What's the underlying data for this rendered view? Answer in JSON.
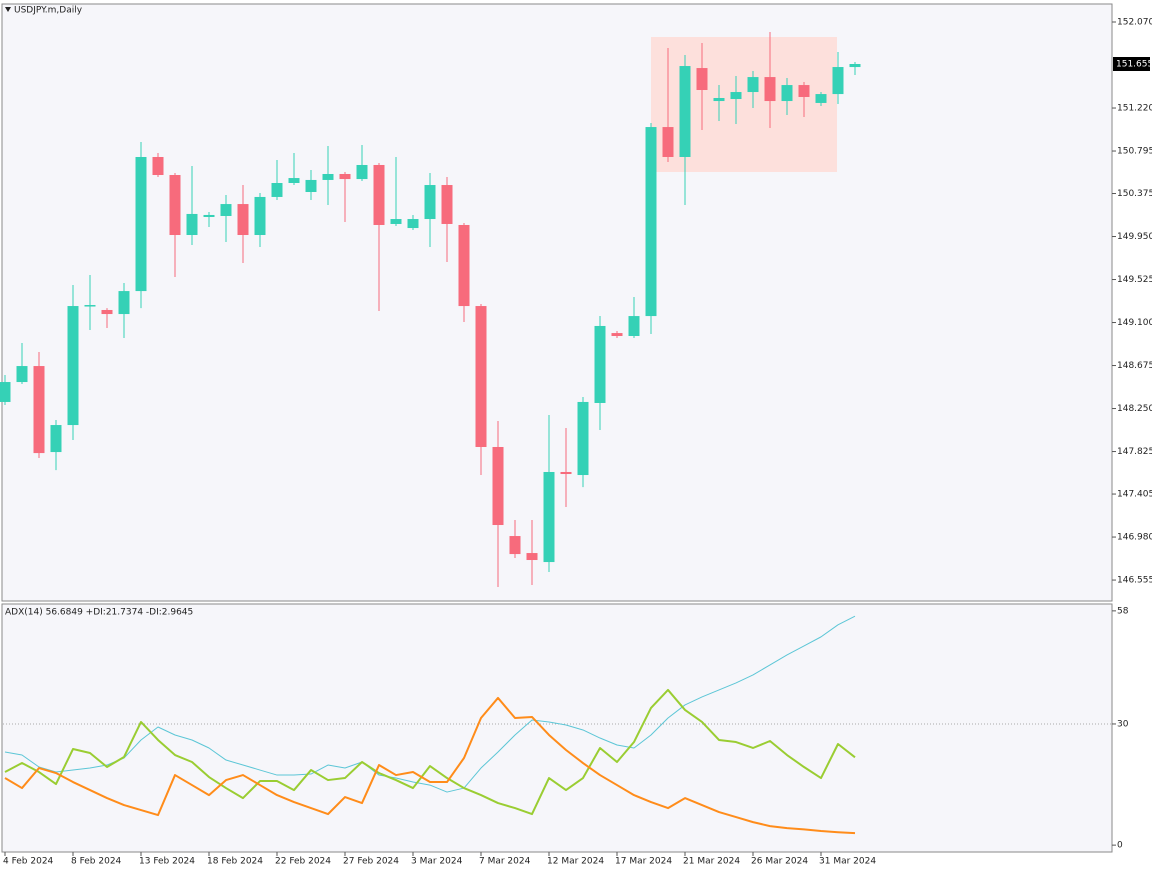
{
  "chart_data": [
    {
      "type": "candlestick",
      "title": "USDJPY.m,Daily",
      "categories": [
        "4 Feb 2024",
        null,
        null,
        null,
        "8 Feb 2024",
        null,
        null,
        null,
        "13 Feb 2024",
        null,
        null,
        null,
        "18 Feb 2024",
        null,
        null,
        null,
        "22 Feb 2024",
        null,
        null,
        null,
        "27 Feb 2024",
        null,
        null,
        null,
        "3 Mar 2024",
        null,
        null,
        null,
        "7 Mar 2024",
        null,
        null,
        null,
        "12 Mar 2024",
        null,
        null,
        null,
        "17 Mar 2024",
        null,
        null,
        null,
        "21 Mar 2024",
        null,
        null,
        null,
        "26 Mar 2024",
        null,
        null,
        null,
        "31 Mar 2024",
        null,
        null
      ],
      "open": [
        148.315,
        148.512,
        148.67,
        147.82,
        148.087,
        149.263,
        149.224,
        149.184,
        149.411,
        150.736,
        150.558,
        149.965,
        150.143,
        150.153,
        150.271,
        149.965,
        150.341,
        150.479,
        150.39,
        150.509,
        150.568,
        150.518,
        150.657,
        150.074,
        150.034,
        150.123,
        150.459,
        150.064,
        149.263,
        147.87,
        146.99,
        146.822,
        146.733,
        147.623,
        147.593,
        148.305,
        148.996,
        148.967,
        149.164,
        151.032,
        150.736,
        151.615,
        151.289,
        151.309,
        151.378,
        151.526,
        151.289,
        151.447,
        151.27,
        151.358,
        151.625
      ],
      "high": [
        148.581,
        148.898,
        148.809,
        148.137,
        149.471,
        149.57,
        149.243,
        149.491,
        150.884,
        150.775,
        150.578,
        150.647,
        150.192,
        150.36,
        150.459,
        150.38,
        150.706,
        150.775,
        150.607,
        150.845,
        150.588,
        150.854,
        150.677,
        150.736,
        150.163,
        150.578,
        150.538,
        150.084,
        149.283,
        148.127,
        147.148,
        147.148,
        148.186,
        148.058,
        148.364,
        149.164,
        149.016,
        149.352,
        151.072,
        151.813,
        151.744,
        151.862,
        151.447,
        151.536,
        151.586,
        151.971,
        151.517,
        151.477,
        151.378,
        151.774,
        151.675
      ],
      "low": [
        148.285,
        148.492,
        147.761,
        147.642,
        147.939,
        149.026,
        149.046,
        148.947,
        149.243,
        150.538,
        149.55,
        149.866,
        150.044,
        149.896,
        149.688,
        149.846,
        150.311,
        150.459,
        150.311,
        150.261,
        150.093,
        150.499,
        149.214,
        150.054,
        150.014,
        149.846,
        149.698,
        149.105,
        147.593,
        146.486,
        146.773,
        146.506,
        146.634,
        147.277,
        147.474,
        148.038,
        148.947,
        148.947,
        148.987,
        150.686,
        150.261,
        151.003,
        151.092,
        151.062,
        151.22,
        151.022,
        151.151,
        151.131,
        151.24,
        151.26,
        151.546
      ],
      "close": [
        148.512,
        148.67,
        147.81,
        148.087,
        149.263,
        149.273,
        149.184,
        149.411,
        150.736,
        150.558,
        149.965,
        150.173,
        150.163,
        150.271,
        149.965,
        150.341,
        150.479,
        150.528,
        150.509,
        150.568,
        150.518,
        150.657,
        150.064,
        150.123,
        150.123,
        150.459,
        150.074,
        149.263,
        147.87,
        147.099,
        146.812,
        146.753,
        147.623,
        147.603,
        148.315,
        149.066,
        148.967,
        149.164,
        151.032,
        150.736,
        151.635,
        151.398,
        151.319,
        151.378,
        151.526,
        151.289,
        151.447,
        151.329,
        151.358,
        151.625,
        151.655
      ],
      "up_color": "#35d1b6",
      "down_color": "#f76b7c",
      "current_price": 151.655,
      "ylim": [
        146.348,
        152.248
      ],
      "yticks": [
        {
          "value": 152.07,
          "label": "152.070"
        },
        {
          "value": 151.22,
          "label": "151.220"
        },
        150.795,
        150.375,
        {
          "value": 149.95,
          "label": "149.950"
        },
        149.525,
        {
          "value": 149.1,
          "label": "149.100"
        },
        148.675,
        {
          "value": 148.25,
          "label": "148.250"
        },
        147.825,
        147.405,
        {
          "value": 146.98,
          "label": "146.980"
        },
        146.555
      ]
    },
    {
      "type": "line",
      "title": "ADX(14) 56.6849 +DI:21.7374 -DI:2.9645",
      "series": [
        {
          "color": "#5cc6d6",
          "width": 1,
          "values": [
            23.05,
            22.31,
            19.34,
            18.1,
            18.59,
            19.09,
            19.83,
            21.57,
            26.03,
            29.25,
            27.27,
            26.03,
            24.05,
            21.07,
            19.83,
            18.59,
            17.35,
            17.35,
            17.6,
            19.83,
            19.09,
            20.58,
            17.35,
            16.61,
            15.62,
            14.87,
            13.14,
            14.13,
            19.09,
            23.05,
            27.27,
            30.99,
            30.49,
            29.75,
            28.51,
            26.52,
            24.79,
            24.05,
            27.27,
            31.48,
            34.71,
            36.69,
            38.42,
            40.16,
            42.14,
            44.62,
            47.1,
            49.33,
            51.56,
            54.54,
            56.68
          ]
        },
        {
          "color": "#9acd32",
          "width": 2,
          "values": [
            18.1,
            20.33,
            18.1,
            15.12,
            23.8,
            22.81,
            19.34,
            21.81,
            30.49,
            26.03,
            22.31,
            20.58,
            16.86,
            14.13,
            11.65,
            15.87,
            15.87,
            13.63,
            18.59,
            16.11,
            16.61,
            20.58,
            17.85,
            16.11,
            14.13,
            19.58,
            16.61,
            14.13,
            12.39,
            10.41,
            9.17,
            7.68,
            16.61,
            13.63,
            16.61,
            24.05,
            20.58,
            25.53,
            33.96,
            38.42,
            33.47,
            30.49,
            26.03,
            25.53,
            24.05,
            25.78,
            22.31,
            19.34,
            16.61,
            25.04,
            21.74
          ]
        },
        {
          "color": "#ff8c1a",
          "width": 2,
          "values": [
            16.61,
            14.13,
            19.09,
            17.85,
            15.62,
            13.63,
            11.65,
            9.92,
            8.68,
            7.44,
            17.35,
            14.87,
            12.39,
            16.11,
            17.35,
            14.87,
            12.39,
            10.66,
            9.17,
            7.68,
            11.9,
            10.41,
            19.83,
            17.35,
            18.1,
            15.62,
            15.62,
            21.57,
            31.48,
            36.44,
            31.48,
            31.73,
            27.27,
            23.55,
            20.33,
            17.35,
            14.87,
            12.39,
            10.66,
            9.17,
            11.65,
            9.92,
            8.18,
            6.94,
            5.7,
            4.71,
            4.2,
            3.9,
            3.5,
            3.2,
            2.96
          ]
        }
      ],
      "level_lines": [
        30
      ],
      "ylim": [
        -1.7,
        59.7
      ],
      "yticks": [
        0,
        30,
        58
      ]
    }
  ]
}
